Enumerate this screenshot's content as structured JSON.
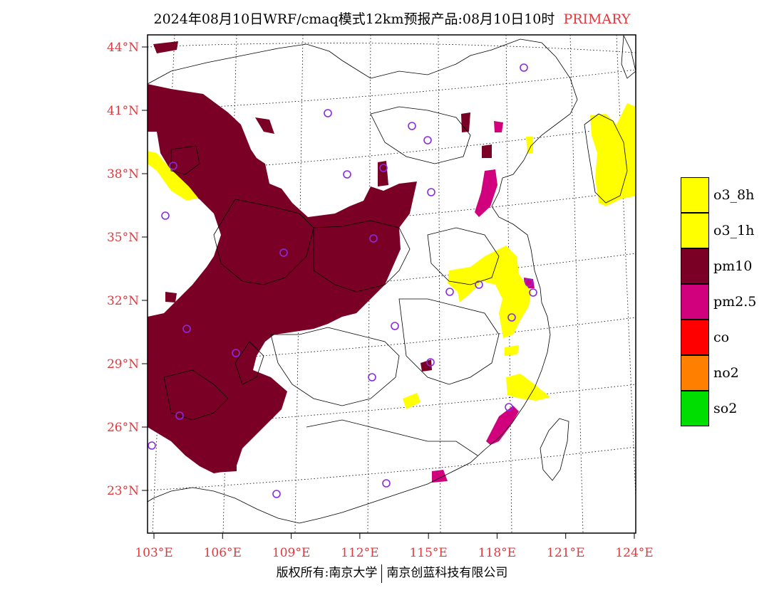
{
  "title": {
    "main": "2024年08月10日WRF/cmaq模式12km预报产品:08月10日10时",
    "tag": "PRIMARY"
  },
  "colors": {
    "label_red": "#e0393e",
    "o3_8h": "#ffff00",
    "o3_1h": "#ffff00",
    "pm10": "#7a0025",
    "pm2_5": "#d1007c",
    "co": "#ff0000",
    "no2": "#ff7f00",
    "so2": "#00dd00",
    "station_marker": "#8a2be2"
  },
  "legend": [
    {
      "key": "o3_8h",
      "label": "o3_8h",
      "color": "#ffff00"
    },
    {
      "key": "o3_1h",
      "label": "o3_1h",
      "color": "#ffff00"
    },
    {
      "key": "pm10",
      "label": "pm10",
      "color": "#7a0025"
    },
    {
      "key": "pm2_5",
      "label": "pm2.5",
      "color": "#d1007c"
    },
    {
      "key": "co",
      "label": "co",
      "color": "#ff0000"
    },
    {
      "key": "no2",
      "label": "no2",
      "color": "#ff7f00"
    },
    {
      "key": "so2",
      "label": "so2",
      "color": "#00dd00"
    }
  ],
  "lat_labels": [
    "44°N",
    "41°N",
    "38°N",
    "35°N",
    "32°N",
    "29°N",
    "26°N",
    "23°N"
  ],
  "lon_labels": [
    "103°E",
    "106°E",
    "109°E",
    "112°E",
    "115°E",
    "118°E",
    "121°E",
    "124°E"
  ],
  "lat_values": [
    44,
    41,
    38,
    35,
    32,
    29,
    26,
    23
  ],
  "lon_values": [
    103,
    106,
    109,
    112,
    115,
    118,
    121,
    124
  ],
  "footer": {
    "left": "版权所有:南京大学",
    "right": "南京创蓝科技有限公司"
  }
}
